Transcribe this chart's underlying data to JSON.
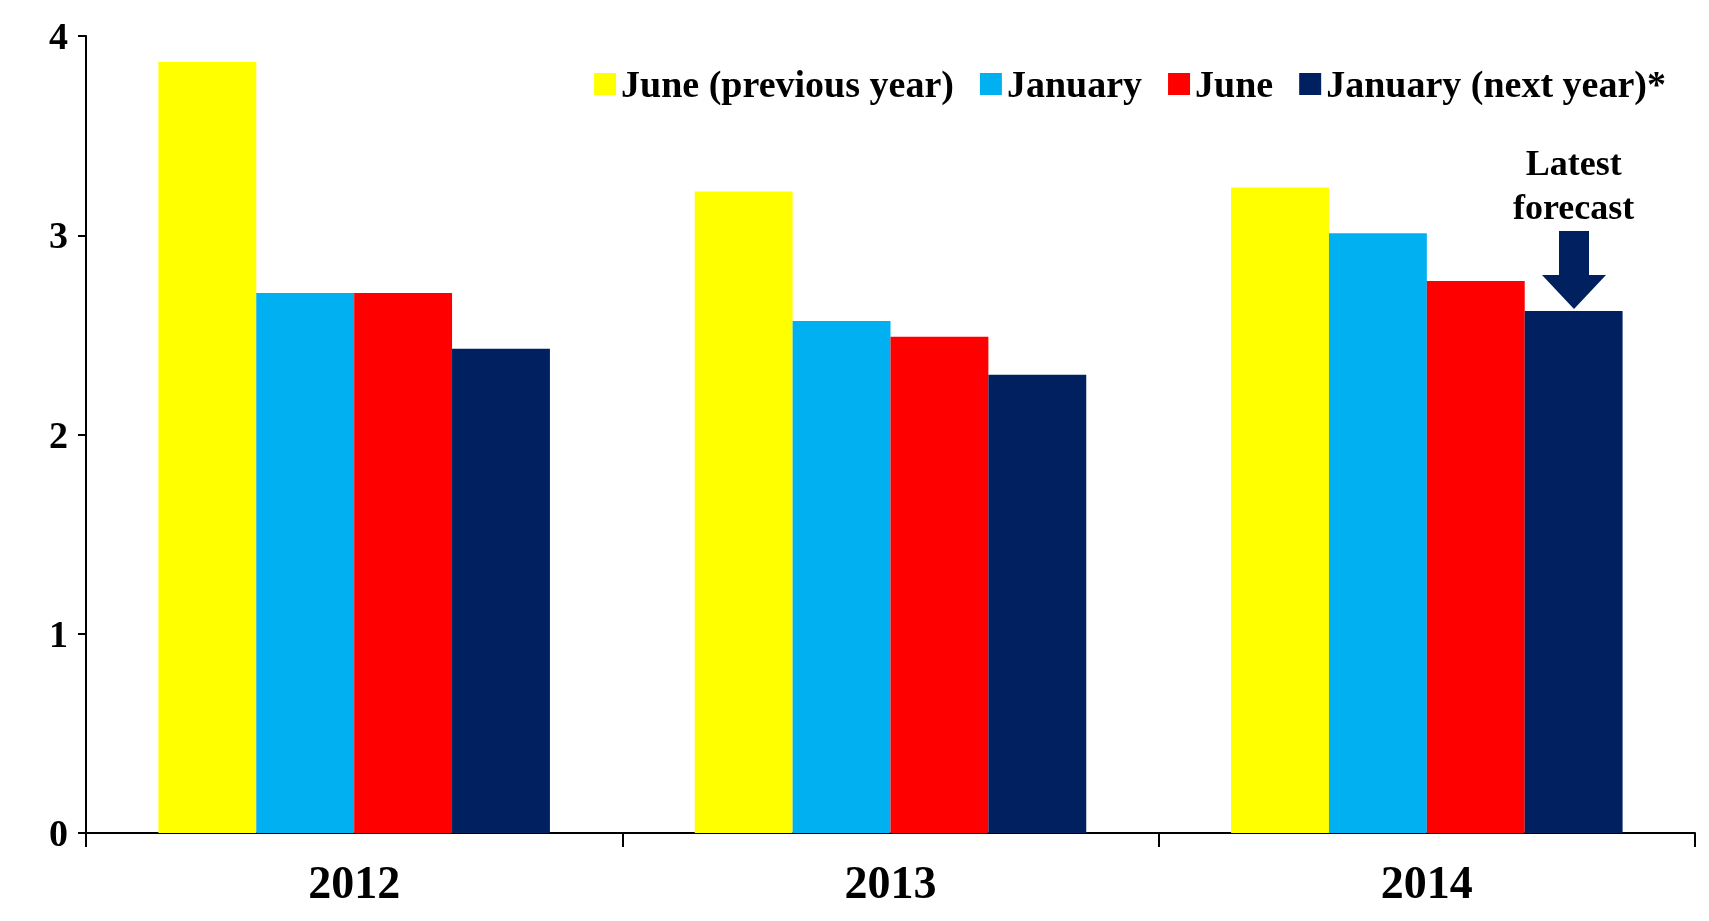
{
  "chart_data": {
    "type": "bar",
    "categories": [
      "2012",
      "2013",
      "2014"
    ],
    "series": [
      {
        "name": "June (previous year)",
        "color": "#ffff00",
        "values": [
          3.87,
          3.22,
          3.24
        ]
      },
      {
        "name": "January",
        "color": "#00b0f0",
        "values": [
          2.71,
          2.57,
          3.01
        ]
      },
      {
        "name": "June",
        "color": "#ff0000",
        "values": [
          2.71,
          2.49,
          2.77
        ]
      },
      {
        "name": "January (next year)*",
        "color": "#002060",
        "values": [
          2.43,
          2.3,
          2.62
        ]
      }
    ],
    "ylim": [
      0,
      4
    ],
    "yticks": [
      0,
      1,
      2,
      3,
      4
    ],
    "grid": false,
    "legend": "top right",
    "annotations": [
      "Latest\nforecast"
    ]
  }
}
